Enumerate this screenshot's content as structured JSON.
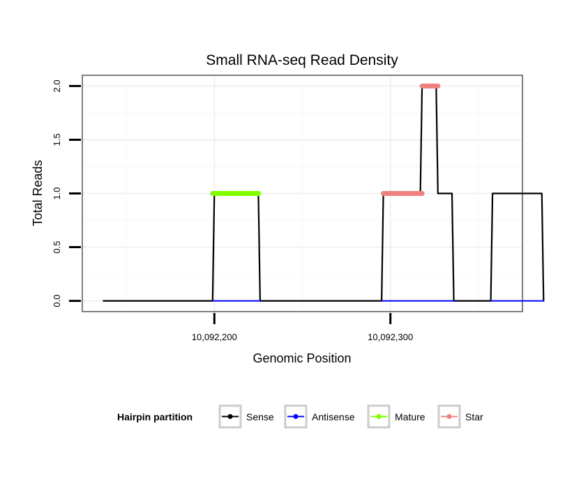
{
  "chart_data": {
    "type": "line",
    "title": "Small RNA-seq Read Density",
    "xlabel": "Genomic Position",
    "ylabel": "Total Reads",
    "xlim": [
      10092125,
      10092375
    ],
    "ylim": [
      -0.1,
      2.1
    ],
    "x_ticks": [
      10092200,
      10092300
    ],
    "x_tick_labels": [
      "10,092,200",
      "10,092,300"
    ],
    "y_ticks": [
      0.0,
      0.5,
      1.0,
      1.5,
      2.0
    ],
    "y_tick_labels": [
      "0.0",
      "0.5",
      "1.0",
      "1.5",
      "2.0"
    ],
    "grid": true,
    "legend": {
      "title": "Hairpin partition",
      "position": "bottom",
      "entries": [
        "Sense",
        "Antisense",
        "Mature",
        "Star"
      ]
    },
    "series": [
      {
        "name": "Sense",
        "color": "#000000",
        "x": [
          10092137,
          10092199,
          10092200,
          10092225,
          10092226,
          10092295,
          10092296,
          10092317,
          10092318,
          10092326,
          10092327,
          10092335,
          10092336,
          10092357,
          10092358,
          10092386,
          10092387
        ],
        "y": [
          0,
          0,
          1,
          1,
          0,
          0,
          1,
          1,
          2,
          2,
          1,
          1,
          0,
          0,
          1,
          1,
          0
        ]
      },
      {
        "name": "Antisense",
        "color": "#0000ff",
        "x": [
          10092199,
          10092226,
          10092295,
          10092336,
          10092357,
          10092387
        ],
        "y": [
          0,
          0,
          0,
          0,
          0,
          0
        ]
      },
      {
        "name": "Mature",
        "color": "#7fff00",
        "x": [
          10092199,
          10092225
        ],
        "y": [
          1,
          1
        ]
      },
      {
        "name": "Star",
        "color": "#f08080",
        "segments": [
          {
            "x": [
              10092296,
              10092318
            ],
            "y": [
              1,
              1
            ]
          },
          {
            "x": [
              10092318,
              10092327
            ],
            "y": [
              2,
              2
            ]
          }
        ]
      }
    ]
  }
}
